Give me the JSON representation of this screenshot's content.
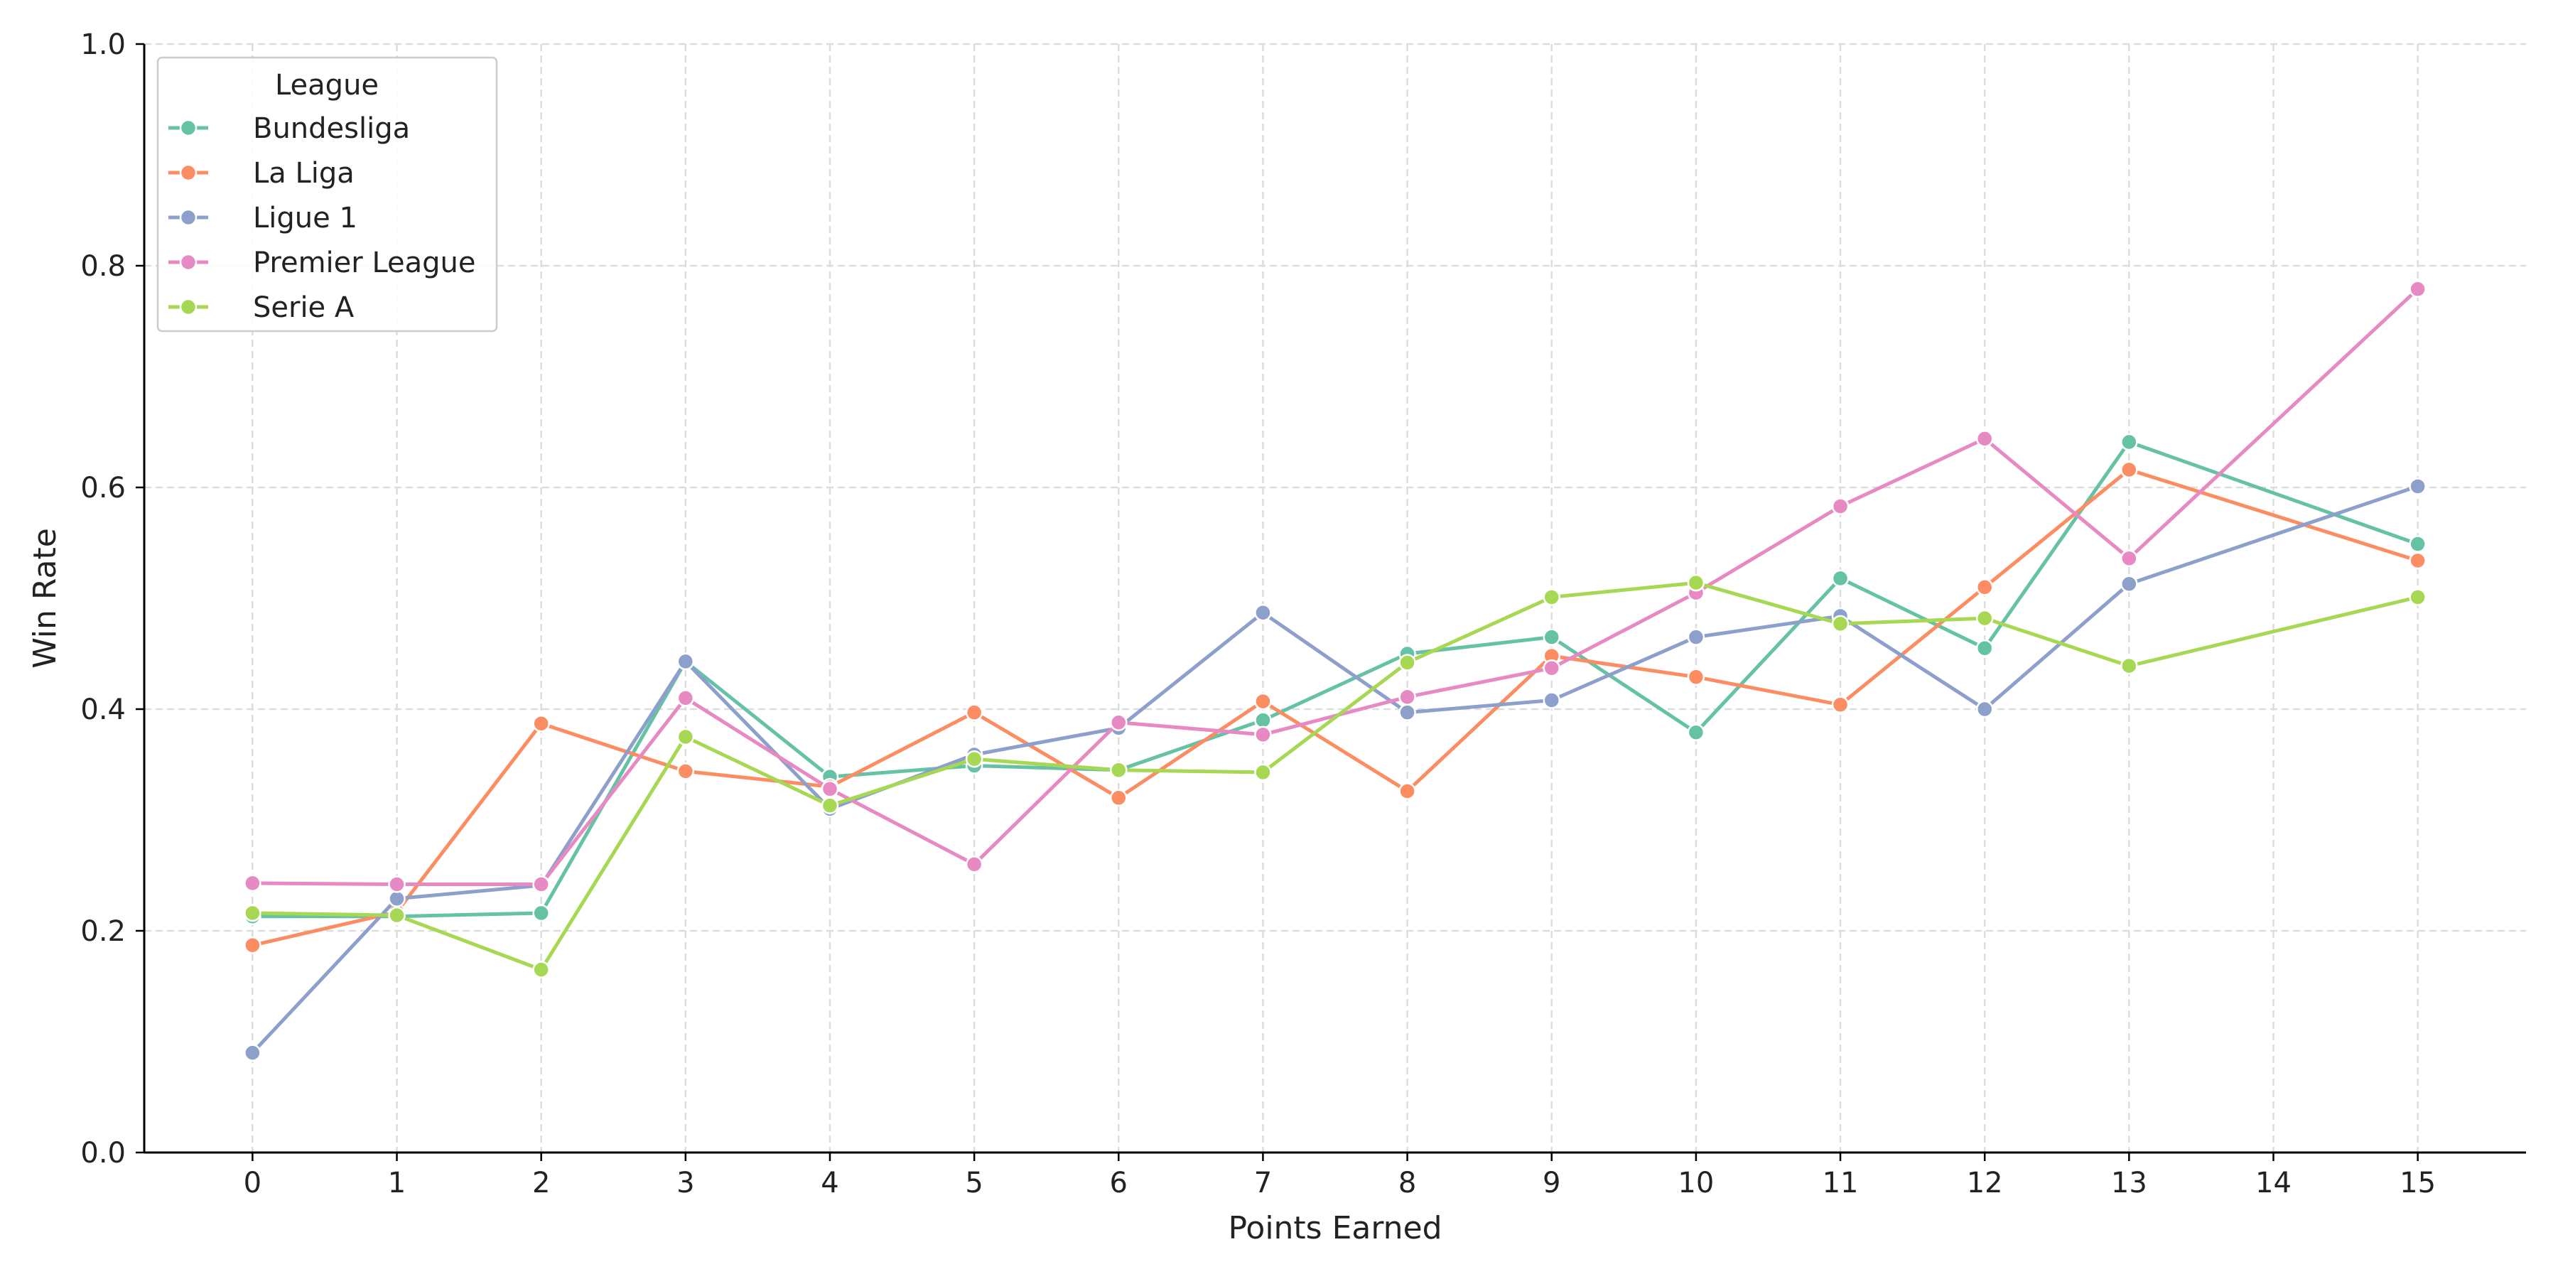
{
  "chart_data": {
    "type": "line",
    "title": "",
    "xlabel": "Points Earned",
    "ylabel": "Win Rate",
    "xlim": [
      -0.75,
      15.75
    ],
    "ylim": [
      0.0,
      1.0
    ],
    "x_ticks": [
      0,
      1,
      2,
      3,
      4,
      5,
      6,
      7,
      8,
      9,
      10,
      11,
      12,
      13,
      14,
      15
    ],
    "y_ticks": [
      0.0,
      0.2,
      0.4,
      0.6,
      0.8,
      1.0
    ],
    "y_tick_labels": [
      "0.0",
      "0.2",
      "0.4",
      "0.6",
      "0.8",
      "1.0"
    ],
    "grid": true,
    "legend": {
      "title": "League",
      "placement": "top-left"
    },
    "series": [
      {
        "name": "Bundesliga",
        "color": "#66c2a5",
        "x": [
          0,
          1,
          2,
          3,
          4,
          5,
          6,
          7,
          8,
          9,
          10,
          11,
          12,
          13,
          15
        ],
        "values": [
          0.213,
          0.213,
          0.216,
          0.443,
          0.339,
          0.349,
          0.345,
          0.39,
          0.45,
          0.465,
          0.379,
          0.518,
          0.455,
          0.641,
          0.549
        ]
      },
      {
        "name": "La Liga",
        "color": "#fc8d62",
        "x": [
          0,
          1,
          2,
          3,
          4,
          5,
          6,
          7,
          8,
          9,
          10,
          11,
          12,
          13,
          15
        ],
        "values": [
          0.187,
          0.217,
          0.387,
          0.344,
          0.33,
          0.397,
          0.32,
          0.407,
          0.326,
          0.448,
          0.429,
          0.404,
          0.51,
          0.616,
          0.534
        ]
      },
      {
        "name": "Ligue 1",
        "color": "#8da0cb",
        "x": [
          0,
          1,
          2,
          3,
          4,
          5,
          6,
          7,
          8,
          9,
          10,
          11,
          12,
          13,
          15
        ],
        "values": [
          0.09,
          0.229,
          0.241,
          0.443,
          0.31,
          0.359,
          0.383,
          0.487,
          0.397,
          0.408,
          0.465,
          0.484,
          0.4,
          0.513,
          0.601
        ]
      },
      {
        "name": "Premier League",
        "color": "#e78ac3",
        "x": [
          0,
          1,
          2,
          3,
          4,
          5,
          6,
          7,
          8,
          9,
          10,
          11,
          12,
          13,
          15
        ],
        "values": [
          0.243,
          0.242,
          0.242,
          0.41,
          0.328,
          0.26,
          0.388,
          0.377,
          0.411,
          0.437,
          0.505,
          0.583,
          0.644,
          0.536,
          0.779
        ]
      },
      {
        "name": "Serie A",
        "color": "#a6d854",
        "x": [
          0,
          1,
          2,
          3,
          4,
          5,
          6,
          7,
          8,
          9,
          10,
          11,
          12,
          13,
          15
        ],
        "values": [
          0.216,
          0.214,
          0.165,
          0.375,
          0.313,
          0.355,
          0.345,
          0.343,
          0.442,
          0.501,
          0.514,
          0.477,
          0.482,
          0.439,
          0.501
        ]
      }
    ]
  }
}
